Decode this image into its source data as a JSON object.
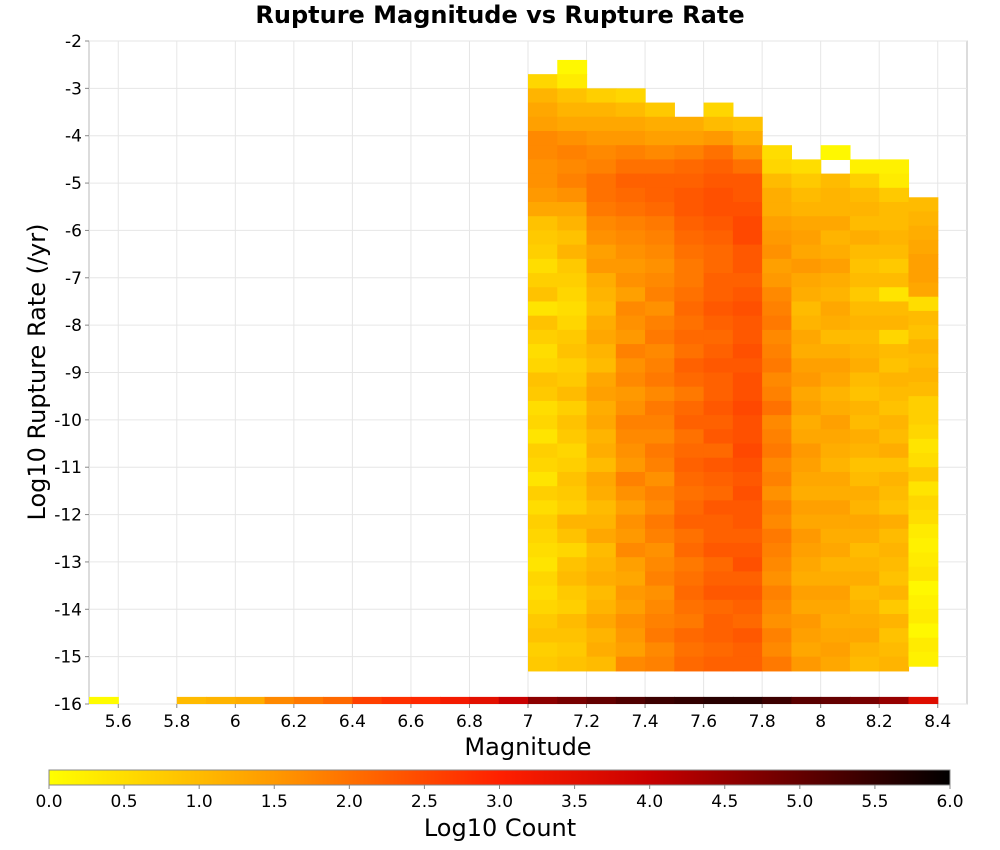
{
  "chart_data": {
    "type": "heatmap",
    "title": "Rupture Magnitude vs Rupture Rate",
    "xlabel": "Magnitude",
    "ylabel": "Log10 Rupture Rate (/yr)",
    "xlim": [
      5.5,
      8.5
    ],
    "ylim": [
      -16,
      -2
    ],
    "x_ticks": [
      "5.6",
      "5.8",
      "6",
      "6.2",
      "6.4",
      "6.6",
      "6.8",
      "7",
      "7.2",
      "7.4",
      "7.6",
      "7.8",
      "8",
      "8.2",
      "8.4"
    ],
    "y_ticks": [
      "-2",
      "-3",
      "-4",
      "-5",
      "-6",
      "-7",
      "-8",
      "-9",
      "-10",
      "-11",
      "-12",
      "-13",
      "-14",
      "-15",
      "-16"
    ],
    "grid": true,
    "cell_width_mag": 0.1,
    "cell_height_lograte": 0.3,
    "bottom_row": {
      "rate_low": -16.0,
      "rate_high": -15.85,
      "magnitudes": [
        5.55,
        5.85,
        5.95,
        6.05,
        6.15,
        6.25,
        6.35,
        6.45,
        6.55,
        6.65,
        6.75,
        6.85,
        6.95,
        7.05,
        7.15,
        7.25,
        7.35,
        7.45,
        7.55,
        7.65,
        7.75,
        7.85,
        7.95,
        8.05,
        8.15,
        8.25,
        8.35
      ],
      "counts": [
        0.05,
        1.0,
        1.1,
        1.2,
        1.7,
        1.9,
        2.1,
        2.6,
        2.8,
        2.9,
        3.2,
        3.5,
        4.0,
        4.6,
        4.8,
        5.0,
        5.2,
        5.4,
        5.5,
        5.6,
        5.6,
        5.4,
        5.1,
        5.0,
        4.8,
        4.5,
        3.6
      ]
    },
    "columns": [
      {
        "mag": 7.05,
        "rate_top": -2.7,
        "log10_counts": [
          0.6,
          1.1,
          1.3,
          1.4,
          1.7,
          1.7,
          1.6,
          1.6,
          1.5,
          1.3,
          0.9,
          0.8,
          0.7,
          0.5,
          0.7,
          0.9,
          0.4,
          0.9,
          0.7,
          0.5,
          0.6,
          0.9,
          0.8,
          0.5,
          0.6,
          0.4,
          0.7,
          0.6,
          0.4,
          0.7,
          0.5,
          0.7,
          0.6,
          0.5,
          0.4,
          0.6,
          0.5,
          0.6,
          0.8,
          0.9,
          0.7,
          0.8
        ]
      },
      {
        "mag": 7.15,
        "rate_top": -2.4,
        "log10_counts": [
          0.1,
          0.3,
          0.9,
          1.1,
          1.3,
          1.6,
          1.8,
          1.7,
          1.8,
          1.6,
          1.3,
          1.1,
          0.9,
          1.1,
          0.8,
          0.7,
          0.6,
          0.5,
          0.6,
          0.8,
          0.9,
          0.7,
          0.8,
          1.0,
          0.7,
          0.9,
          0.8,
          0.6,
          0.7,
          0.9,
          0.8,
          0.7,
          1.1,
          0.9,
          0.6,
          0.9,
          1.0,
          0.8,
          0.7,
          1.0,
          0.9,
          0.8,
          0.9
        ]
      },
      {
        "mag": 7.25,
        "rate_top": -3.0,
        "log10_counts": [
          0.7,
          1.1,
          1.3,
          1.5,
          1.7,
          1.8,
          2.0,
          2.0,
          1.9,
          1.7,
          1.6,
          1.4,
          1.5,
          1.2,
          1.1,
          1.0,
          1.2,
          1.3,
          1.1,
          1.0,
          1.3,
          1.4,
          1.2,
          1.3,
          1.1,
          1.2,
          1.0,
          1.3,
          1.2,
          1.0,
          1.1,
          1.3,
          1.0,
          1.1,
          1.2,
          1.0,
          1.1,
          1.3,
          1.1,
          1.2,
          1.0
        ]
      },
      {
        "mag": 7.35,
        "rate_top": -3.0,
        "log10_counts": [
          0.6,
          1.0,
          1.3,
          1.5,
          1.8,
          2.0,
          2.2,
          2.1,
          2.0,
          1.8,
          1.7,
          1.6,
          1.5,
          1.6,
          1.4,
          1.7,
          1.6,
          1.5,
          1.8,
          1.6,
          1.7,
          1.5,
          1.6,
          1.8,
          1.7,
          1.6,
          1.5,
          1.8,
          1.6,
          1.4,
          1.6,
          1.5,
          1.7,
          1.4,
          1.3,
          1.5,
          1.4,
          1.6,
          1.5,
          1.4,
          1.7
        ]
      },
      {
        "mag": 7.45,
        "rate_top": -3.3,
        "log10_counts": [
          0.8,
          1.2,
          1.4,
          1.7,
          2.0,
          2.2,
          2.2,
          2.1,
          1.9,
          1.8,
          1.7,
          1.6,
          1.7,
          1.8,
          1.6,
          1.8,
          1.9,
          1.7,
          1.8,
          1.9,
          1.7,
          1.9,
          1.8,
          1.7,
          1.9,
          1.8,
          1.6,
          1.8,
          1.7,
          1.9,
          1.8,
          1.6,
          1.7,
          1.8,
          1.6,
          1.7,
          1.8,
          1.9,
          1.7,
          1.8
        ]
      },
      {
        "mag": 7.55,
        "rate_top": -3.6,
        "log10_counts": [
          1.2,
          1.4,
          1.8,
          2.1,
          2.2,
          2.3,
          2.3,
          2.2,
          2.1,
          2.0,
          1.9,
          1.9,
          2.0,
          2.1,
          2.0,
          2.1,
          2.0,
          2.2,
          2.1,
          1.9,
          2.1,
          2.2,
          2.0,
          2.1,
          2.2,
          2.1,
          2.0,
          2.1,
          2.2,
          2.0,
          2.1,
          1.9,
          2.0,
          2.1,
          2.0,
          1.9,
          2.1,
          2.0,
          2.1
        ]
      },
      {
        "mag": 7.65,
        "rate_top": -3.3,
        "log10_counts": [
          0.6,
          1.0,
          1.5,
          2.0,
          2.2,
          2.3,
          2.4,
          2.4,
          2.3,
          2.2,
          2.1,
          2.1,
          2.2,
          2.2,
          2.3,
          2.2,
          2.1,
          2.2,
          2.3,
          2.2,
          2.2,
          2.3,
          2.2,
          2.3,
          2.1,
          2.3,
          2.2,
          2.1,
          2.3,
          2.2,
          2.2,
          2.3,
          2.1,
          2.2,
          2.3,
          2.1,
          2.2,
          2.2,
          2.1,
          2.2
        ]
      },
      {
        "mag": 7.75,
        "rate_top": -3.6,
        "log10_counts": [
          0.9,
          1.2,
          1.6,
          2.0,
          2.3,
          2.3,
          2.4,
          2.5,
          2.5,
          2.3,
          2.3,
          2.2,
          2.3,
          2.4,
          2.3,
          2.3,
          2.4,
          2.3,
          2.4,
          2.4,
          2.5,
          2.4,
          2.4,
          2.5,
          2.4,
          2.3,
          2.4,
          2.3,
          2.3,
          2.2,
          2.3,
          2.4,
          2.2,
          2.3,
          2.2,
          2.1,
          2.3,
          2.2,
          2.2
        ]
      },
      {
        "mag": 7.85,
        "rate_top": -4.2,
        "log10_counts": [
          0.5,
          0.6,
          1.0,
          1.2,
          1.2,
          1.4,
          1.5,
          1.6,
          1.4,
          1.5,
          1.7,
          1.8,
          1.9,
          1.7,
          1.8,
          1.9,
          1.7,
          1.8,
          2.0,
          1.7,
          1.8,
          1.9,
          1.7,
          1.8,
          1.6,
          1.8,
          1.7,
          1.9,
          1.8,
          1.7,
          1.6,
          1.8,
          1.7,
          1.6,
          1.8,
          1.7,
          1.9
        ]
      },
      {
        "mag": 7.95,
        "rate_top": -4.5,
        "log10_counts": [
          0.5,
          0.8,
          1.0,
          1.1,
          1.3,
          1.4,
          1.3,
          1.5,
          1.3,
          1.2,
          1.0,
          1.1,
          1.3,
          1.2,
          1.4,
          1.5,
          1.3,
          1.4,
          1.2,
          1.3,
          1.5,
          1.4,
          1.3,
          1.2,
          1.4,
          1.3,
          1.5,
          1.4,
          1.3,
          1.2,
          1.4,
          1.3,
          1.5,
          1.4,
          1.3,
          1.5
        ]
      },
      {
        "mag": 8.05,
        "rate_top": -4.2,
        "log10_counts": [
          0.1,
          null,
          1.0,
          1.1,
          1.1,
          1.3,
          1.1,
          1.2,
          1.4,
          1.2,
          1.1,
          1.3,
          1.2,
          1.0,
          1.2,
          1.4,
          1.3,
          1.1,
          1.2,
          1.4,
          1.3,
          1.2,
          1.1,
          1.3,
          1.2,
          1.4,
          1.3,
          1.2,
          1.3,
          1.1,
          1.2,
          1.4,
          1.3,
          1.2,
          1.3,
          1.4,
          1.3
        ]
      },
      {
        "mag": 8.15,
        "rate_top": -4.5,
        "log10_counts": [
          0.2,
          0.7,
          1.0,
          1.1,
          1.0,
          1.2,
          1.0,
          0.9,
          1.0,
          0.8,
          1.0,
          1.1,
          1.0,
          1.1,
          1.2,
          1.0,
          0.9,
          1.1,
          1.0,
          1.2,
          1.1,
          0.9,
          1.0,
          1.2,
          1.1,
          1.3,
          1.2,
          1.0,
          1.1,
          1.2,
          1.0,
          1.1,
          1.2,
          1.3,
          1.1,
          1.0
        ]
      },
      {
        "mag": 8.25,
        "rate_top": -4.5,
        "log10_counts": [
          0.2,
          0.3,
          0.8,
          1.0,
          1.0,
          1.1,
          1.0,
          0.8,
          1.0,
          0.4,
          1.0,
          1.1,
          0.6,
          1.0,
          0.9,
          1.1,
          1.0,
          0.9,
          1.1,
          1.0,
          1.2,
          0.9,
          1.1,
          1.0,
          0.9,
          1.2,
          1.0,
          1.1,
          1.0,
          0.9,
          1.1,
          0.8,
          1.1,
          0.9,
          1.0,
          1.1
        ]
      },
      {
        "mag": 8.35,
        "rate_top": -5.3,
        "log10_counts": [
          1.0,
          1.1,
          1.2,
          1.3,
          1.4,
          1.4,
          1.3,
          0.5,
          1.0,
          0.9,
          1.1,
          1.0,
          1.1,
          1.0,
          0.7,
          0.7,
          0.6,
          0.4,
          0.5,
          0.8,
          0.4,
          0.6,
          0.5,
          0.3,
          0.2,
          0.3,
          0.4,
          0.1,
          0.2,
          0.3,
          0.1,
          0.3,
          0.2
        ]
      }
    ],
    "colorbar": {
      "label": "Log10 Count",
      "min": 0,
      "max": 6,
      "ticks": [
        "0.0",
        "0.5",
        "1.0",
        "1.5",
        "2.0",
        "2.5",
        "3.0",
        "3.5",
        "4.0",
        "4.5",
        "5.0",
        "5.5",
        "6.0"
      ],
      "stops": [
        "#ffff00",
        "#ff9900",
        "#ff2000",
        "#c80000",
        "#000000"
      ]
    }
  }
}
